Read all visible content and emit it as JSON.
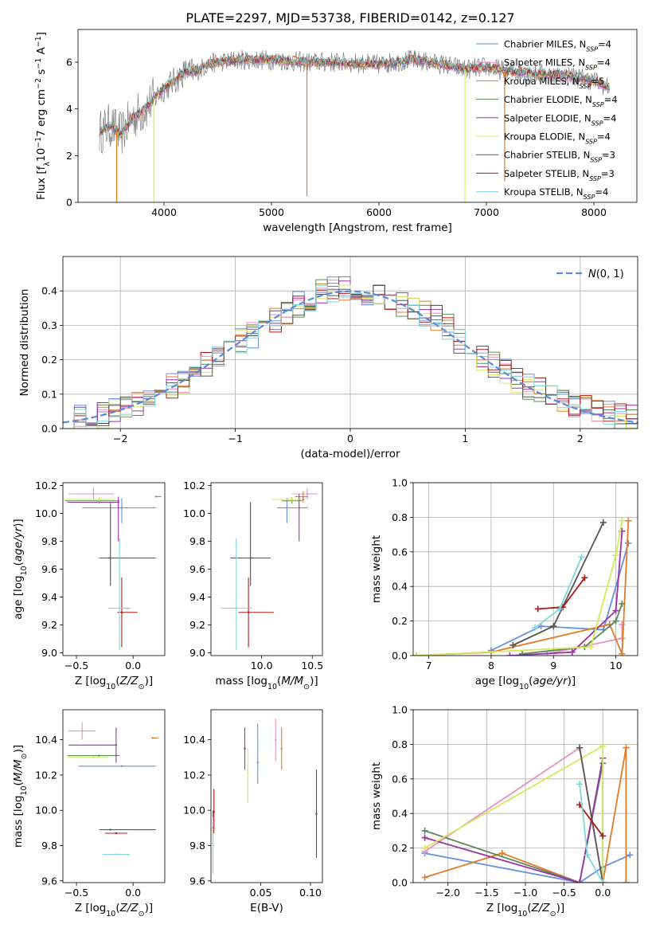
{
  "figure_title": "PLATE=2297, MJD=53738, FIBERID=0142, z=0.127",
  "colors": {
    "chabrier_miles": "#6a8fdc",
    "salpeter_miles": "#e88fc4",
    "kroupa_miles": "#e07b28",
    "chabrier_elodie": "#5a8a5a",
    "salpeter_elodie": "#9b32a8",
    "kroupa_elodie": "#d6e85a",
    "chabrier_stelib": "#555555",
    "salpeter_stelib": "#b01818",
    "kroupa_stelib": "#7fd8e0",
    "data_grey": "#808080",
    "normal_curve": "#5a8ad8"
  },
  "chart_data": [
    {
      "id": "spectrum",
      "type": "line",
      "xlabel": "wavelength [Angstrom, rest frame]",
      "ylabel": "Flux [f_λ10^-17 erg cm^-2 s^-1 A^-1]",
      "xlim": [
        3200,
        8400
      ],
      "ylim": [
        0,
        7.4
      ],
      "xticks": [
        4000,
        5000,
        6000,
        7000,
        8000
      ],
      "yticks": [
        0,
        2,
        4,
        6
      ],
      "grid": false,
      "legend_position": "right",
      "legend": [
        "Chabrier MILES, N_SSP=4",
        "Salpeter MILES, N_SSP=4",
        "Kroupa MILES, N_SSP=5",
        "Chabrier ELODIE, N_SSP=4",
        "Salpeter ELODIE, N_SSP=4",
        "Kroupa ELODIE, N_SSP=4",
        "Chabrier STELIB, N_SSP=3",
        "Salpeter STELIB, N_SSP=3",
        "Kroupa STELIB, N_SSP=4"
      ],
      "continuum": {
        "x": [
          3400,
          3500,
          3600,
          3700,
          3800,
          3900,
          4000,
          4100,
          4200,
          4300,
          4400,
          4500,
          4700,
          5000,
          5300,
          5600,
          6000,
          6300,
          6600,
          6800,
          7000,
          7200,
          7500,
          7800,
          8000,
          8150
        ],
        "y": [
          3.0,
          3.3,
          2.9,
          3.6,
          3.9,
          4.4,
          4.9,
          5.2,
          5.6,
          5.6,
          5.9,
          6.0,
          6.1,
          6.1,
          6.0,
          6.0,
          5.9,
          6.1,
          5.9,
          5.7,
          5.8,
          5.6,
          5.5,
          5.4,
          5.2,
          4.9
        ]
      },
      "noise_amplitude": 0.45,
      "dips": [
        {
          "series": "Kroupa MILES",
          "x": 3560,
          "y": 0
        },
        {
          "series": "Kroupa ELODIE",
          "x": 3905,
          "y": 0
        },
        {
          "series": "Kroupa MILES",
          "x": 5330,
          "y": 0.25
        },
        {
          "series": "Kroupa ELODIE",
          "x": 6800,
          "y": 0
        },
        {
          "series": "Kroupa MILES",
          "x": 7170,
          "y": 0.9
        }
      ]
    },
    {
      "id": "residuals",
      "type": "histogram",
      "xlabel": "(data-model)/error",
      "ylabel": "Normed distribution",
      "xlim": [
        -2.5,
        2.5
      ],
      "ylim": [
        0,
        0.5
      ],
      "xticks": [
        -2,
        -1,
        0,
        1,
        2
      ],
      "yticks": [
        0.0,
        0.1,
        0.2,
        0.3,
        0.4
      ],
      "grid": true,
      "legend_position": "top-right",
      "legend": [
        "N(0, 1)"
      ],
      "bin_width": 0.1,
      "base_profile": {
        "x": [
          -2.5,
          -2.0,
          -1.5,
          -1.0,
          -0.5,
          -0.2,
          0.0,
          0.3,
          0.5,
          0.8,
          1.0,
          1.5,
          2.0,
          2.5
        ],
        "y": [
          0.02,
          0.05,
          0.13,
          0.24,
          0.35,
          0.41,
          0.4,
          0.38,
          0.36,
          0.31,
          0.24,
          0.13,
          0.06,
          0.03
        ]
      },
      "spread": 0.04
    },
    {
      "id": "age_vs_z",
      "type": "scatter",
      "xlabel": "Z [log10(Z/Z☉)]",
      "ylabel": "age [log10(age/yr)]",
      "xlim": [
        -0.62,
        0.28
      ],
      "ylim": [
        8.98,
        10.22
      ],
      "xticks": [
        -0.5,
        0.0
      ],
      "yticks": [
        9.0,
        9.2,
        9.4,
        9.6,
        9.8,
        10.0,
        10.2
      ],
      "grid": false,
      "points": [
        {
          "series": "Chabrier MILES",
          "x": -0.1,
          "y": 10.04,
          "xerr": [
            0.35,
            0.3
          ],
          "yerr": [
            0.11,
            0.07
          ]
        },
        {
          "series": "Salpeter MILES",
          "x": -0.35,
          "y": 10.14,
          "xerr": [
            0.22,
            0.18
          ],
          "yerr": [
            0.04,
            0.04
          ]
        },
        {
          "series": "Kroupa MILES",
          "x": 0.2,
          "y": 10.12,
          "xerr": [
            0.0,
            0.05
          ],
          "yerr": [
            0.0,
            0.0
          ]
        },
        {
          "series": "Chabrier ELODIE",
          "x": -0.3,
          "y": 10.09,
          "xerr": [
            0.3,
            0.18
          ],
          "yerr": [
            0.02,
            0.02
          ]
        },
        {
          "series": "Salpeter ELODIE",
          "x": -0.13,
          "y": 10.08,
          "xerr": [
            0.45,
            0.0
          ],
          "yerr": [
            0.28,
            0.04
          ]
        },
        {
          "series": "Kroupa ELODIE",
          "x": -0.3,
          "y": 10.1,
          "xerr": [
            0.3,
            0.15
          ],
          "yerr": [
            0.02,
            0.02
          ]
        },
        {
          "series": "Chabrier STELIB",
          "x": -0.2,
          "y": 9.68,
          "xerr": [
            0.1,
            0.4
          ],
          "yerr": [
            0.2,
            0.4
          ]
        },
        {
          "series": "Salpeter STELIB",
          "x": -0.1,
          "y": 9.29,
          "xerr": [
            0.04,
            0.14
          ],
          "yerr": [
            0.25,
            0.25
          ]
        },
        {
          "series": "Kroupa STELIB",
          "x": -0.12,
          "y": 9.32,
          "xerr": [
            0.1,
            0.1
          ],
          "yerr": [
            0.3,
            0.5
          ]
        }
      ]
    },
    {
      "id": "age_vs_mass",
      "type": "scatter",
      "xlabel": "mass [log10(M/M☉)]",
      "ylabel": "",
      "xlim": [
        9.5,
        10.6
      ],
      "ylim": [
        8.98,
        10.22
      ],
      "xticks": [
        10.0,
        10.5
      ],
      "yticks": [
        9.0,
        9.2,
        9.4,
        9.6,
        9.8,
        10.0,
        10.2
      ],
      "grid": false,
      "points": [
        {
          "series": "Chabrier MILES",
          "x": 10.25,
          "y": 10.04,
          "xerr": [
            0.1,
            0.2
          ],
          "yerr": [
            0.11,
            0.07
          ]
        },
        {
          "series": "Salpeter MILES",
          "x": 10.45,
          "y": 10.14,
          "xerr": [
            0.15,
            0.1
          ],
          "yerr": [
            0.04,
            0.04
          ]
        },
        {
          "series": "Kroupa MILES",
          "x": 10.41,
          "y": 10.12,
          "xerr": [
            0.08,
            0.05
          ],
          "yerr": [
            0.04,
            0.04
          ]
        },
        {
          "series": "Chabrier ELODIE",
          "x": 10.3,
          "y": 10.09,
          "xerr": [
            0.1,
            0.1
          ],
          "yerr": [
            0.02,
            0.02
          ]
        },
        {
          "series": "Salpeter ELODIE",
          "x": 10.37,
          "y": 10.1,
          "xerr": [
            0.1,
            0.05
          ],
          "yerr": [
            0.3,
            0.04
          ]
        },
        {
          "series": "Kroupa ELODIE",
          "x": 10.3,
          "y": 10.1,
          "xerr": [
            0.2,
            0.1
          ],
          "yerr": [
            0.02,
            0.02
          ]
        },
        {
          "series": "Chabrier STELIB",
          "x": 9.89,
          "y": 9.68,
          "xerr": [
            0.2,
            0.2
          ],
          "yerr": [
            0.2,
            0.4
          ]
        },
        {
          "series": "Salpeter STELIB",
          "x": 9.87,
          "y": 9.29,
          "xerr": [
            0.1,
            0.25
          ],
          "yerr": [
            0.25,
            0.25
          ]
        },
        {
          "series": "Kroupa STELIB",
          "x": 9.75,
          "y": 9.32,
          "xerr": [
            0.15,
            0.15
          ],
          "yerr": [
            0.3,
            0.5
          ]
        }
      ]
    },
    {
      "id": "weight_vs_age",
      "type": "line",
      "xlabel": "age [log10(age/yr)]",
      "ylabel": "mass weight",
      "xlim": [
        6.75,
        10.35
      ],
      "ylim": [
        0,
        1.0
      ],
      "xticks": [
        7,
        8,
        9,
        10
      ],
      "yticks": [
        0.0,
        0.2,
        0.4,
        0.6,
        0.8,
        1.0
      ],
      "grid": true,
      "series": [
        {
          "name": "Chabrier MILES",
          "x": [
            8.0,
            8.8,
            9.8,
            10.2
          ],
          "y": [
            0.03,
            0.17,
            0.15,
            0.65
          ]
        },
        {
          "name": "Salpeter MILES",
          "x": [
            8.9,
            10.1,
            10.1
          ],
          "y": [
            0.01,
            0.1,
            0.18
          ]
        },
        {
          "name": "Kroupa MILES",
          "x": [
            6.8,
            8.0,
            9.9,
            10.1,
            10.2
          ],
          "y": [
            0.0,
            0.02,
            0.18,
            0.01,
            0.78
          ]
        },
        {
          "name": "Chabrier ELODIE",
          "x": [
            8.5,
            9.5,
            10.0,
            10.1
          ],
          "y": [
            0.01,
            0.05,
            0.2,
            0.3
          ]
        },
        {
          "name": "Salpeter ELODIE",
          "x": [
            8.3,
            9.3,
            10.0,
            10.1
          ],
          "y": [
            0.0,
            0.02,
            0.26,
            0.72
          ]
        },
        {
          "name": "Kroupa ELODIE",
          "x": [
            6.8,
            9.6,
            10.0,
            10.1
          ],
          "y": [
            0.0,
            0.05,
            0.58,
            0.78
          ]
        },
        {
          "name": "Chabrier STELIB",
          "x": [
            8.35,
            9.0,
            9.8
          ],
          "y": [
            0.06,
            0.17,
            0.77
          ]
        },
        {
          "name": "Salpeter STELIB",
          "x": [
            8.75,
            9.15,
            9.5
          ],
          "y": [
            0.27,
            0.28,
            0.45
          ]
        },
        {
          "name": "Kroupa STELIB",
          "x": [
            8.7,
            9.1,
            9.45
          ],
          "y": [
            0.16,
            0.27,
            0.57
          ]
        }
      ]
    },
    {
      "id": "mass_vs_z",
      "type": "scatter",
      "xlabel": "Z [log10(Z/Z☉)]",
      "ylabel": "mass [log10(M/M☉)]",
      "xlim": [
        -0.62,
        0.28
      ],
      "ylim": [
        9.59,
        10.57
      ],
      "xticks": [
        -0.5,
        0.0
      ],
      "yticks": [
        9.6,
        9.8,
        10.0,
        10.2,
        10.4
      ],
      "grid": false,
      "points": [
        {
          "series": "Chabrier MILES",
          "x": -0.1,
          "y": 10.25,
          "xerr": [
            0.38,
            0.3
          ],
          "yerr": [
            0.0,
            0.0
          ]
        },
        {
          "series": "Salpeter MILES",
          "x": -0.45,
          "y": 10.45,
          "xerr": [
            0.12,
            0.12
          ],
          "yerr": [
            0.05,
            0.05
          ]
        },
        {
          "series": "Kroupa MILES",
          "x": 0.17,
          "y": 10.41,
          "xerr": [
            0.0,
            0.05
          ],
          "yerr": [
            0.0,
            0.0
          ]
        },
        {
          "series": "Chabrier ELODIE",
          "x": -0.3,
          "y": 10.31,
          "xerr": [
            0.28,
            0.18
          ],
          "yerr": [
            0.0,
            0.0
          ]
        },
        {
          "series": "Salpeter ELODIE",
          "x": -0.15,
          "y": 10.37,
          "xerr": [
            0.42,
            0.0
          ],
          "yerr": [
            0.1,
            0.1
          ]
        },
        {
          "series": "Kroupa ELODIE",
          "x": -0.35,
          "y": 10.3,
          "xerr": [
            0.23,
            0.13
          ],
          "yerr": [
            0.0,
            0.0
          ]
        },
        {
          "series": "Chabrier STELIB",
          "x": -0.2,
          "y": 9.89,
          "xerr": [
            0.1,
            0.4
          ],
          "yerr": [
            0.0,
            0.0
          ]
        },
        {
          "series": "Salpeter STELIB",
          "x": -0.15,
          "y": 9.87,
          "xerr": [
            0.1,
            0.1
          ],
          "yerr": [
            0.0,
            0.0
          ]
        },
        {
          "series": "Kroupa STELIB",
          "x": -0.15,
          "y": 9.75,
          "xerr": [
            0.12,
            0.12
          ],
          "yerr": [
            0.0,
            0.0
          ]
        }
      ]
    },
    {
      "id": "ebv_panel",
      "type": "scatter",
      "xlabel": "E(B-V)",
      "ylabel": "",
      "xlim": [
        0.0,
        0.112
      ],
      "ylim": [
        9.59,
        10.57
      ],
      "xticks": [
        0.05,
        0.1
      ],
      "yticks": [
        9.6,
        9.8,
        10.0,
        10.2,
        10.4
      ],
      "grid": false,
      "points": [
        {
          "series": "Chabrier MILES",
          "x": 0.047,
          "y": 10.27,
          "yerr": [
            0.12,
            0.22
          ]
        },
        {
          "series": "Salpeter MILES",
          "x": 0.065,
          "y": 10.4,
          "yerr": [
            0.12,
            0.12
          ]
        },
        {
          "series": "Kroupa MILES",
          "x": 0.071,
          "y": 10.35,
          "yerr": [
            0.12,
            0.12
          ]
        },
        {
          "series": "Chabrier ELODIE",
          "x": 0.002,
          "y": 9.9,
          "yerr": [
            0.1,
            0.1
          ]
        },
        {
          "series": "Salpeter ELODIE",
          "x": 0.034,
          "y": 10.35,
          "yerr": [
            0.12,
            0.12
          ]
        },
        {
          "series": "Kroupa ELODIE",
          "x": 0.037,
          "y": 10.21,
          "yerr": [
            0.17,
            0.14
          ]
        },
        {
          "series": "Chabrier STELIB",
          "x": 0.106,
          "y": 9.98,
          "yerr": [
            0.25,
            0.25
          ]
        },
        {
          "series": "Salpeter STELIB",
          "x": 0.003,
          "y": 9.99,
          "yerr": [
            0.12,
            0.13
          ]
        },
        {
          "series": "Kroupa STELIB",
          "x": 0.002,
          "y": 9.8,
          "yerr": [
            0.16,
            0.16
          ]
        }
      ]
    },
    {
      "id": "weight_vs_z",
      "type": "line",
      "xlabel": "Z [log10(Z/Z☉)]",
      "ylabel": "mass weight",
      "xlim": [
        -2.45,
        0.45
      ],
      "ylim": [
        0,
        1.0
      ],
      "xticks": [
        -2.0,
        -1.5,
        -1.0,
        -0.5,
        0.0
      ],
      "yticks": [
        0.0,
        0.2,
        0.4,
        0.6,
        0.8,
        1.0
      ],
      "grid": true,
      "series": [
        {
          "name": "Chabrier MILES",
          "x": [
            -2.3,
            -0.3,
            0.0,
            0.35
          ],
          "y": [
            0.17,
            0.0,
            0.09,
            0.16
          ]
        },
        {
          "name": "Salpeter MILES",
          "x": [
            -2.3,
            -0.3,
            0.0
          ],
          "y": [
            0.18,
            0.78,
            0.0
          ]
        },
        {
          "name": "Kroupa MILES",
          "x": [
            -2.3,
            -1.3,
            -0.3,
            0.0,
            0.3,
            0.3
          ],
          "y": [
            0.03,
            0.17,
            0.0,
            0.0,
            0.78,
            0.0
          ]
        },
        {
          "name": "Chabrier ELODIE",
          "x": [
            -2.3,
            -0.3,
            0.0,
            0.0
          ],
          "y": [
            0.3,
            0.0,
            0.69,
            0.0
          ]
        },
        {
          "name": "Salpeter ELODIE",
          "x": [
            -2.3,
            -0.3,
            0.0
          ],
          "y": [
            0.26,
            0.0,
            0.72
          ]
        },
        {
          "name": "Kroupa ELODIE",
          "x": [
            -2.3,
            0.0,
            0.0
          ],
          "y": [
            0.2,
            0.79,
            0.0
          ]
        },
        {
          "name": "Chabrier STELIB",
          "x": [
            -0.3,
            0.0,
            0.0
          ],
          "y": [
            0.78,
            0.0,
            0.0
          ]
        },
        {
          "name": "Salpeter STELIB",
          "x": [
            -0.3,
            0.0
          ],
          "y": [
            0.45,
            0.27
          ]
        },
        {
          "name": "Kroupa STELIB",
          "x": [
            -0.3,
            -0.2,
            0.0
          ],
          "y": [
            0.57,
            0.16,
            0.0
          ]
        }
      ]
    }
  ]
}
